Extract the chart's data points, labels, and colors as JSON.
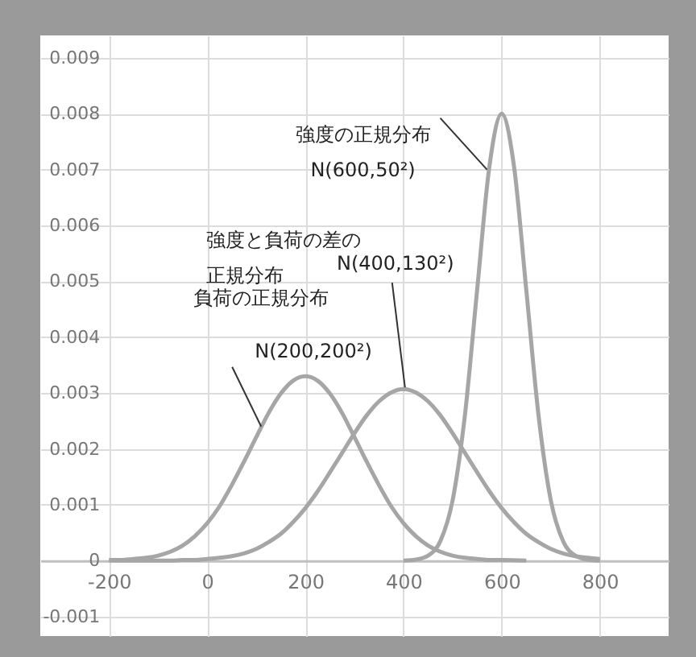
{
  "chart_data": {
    "type": "line",
    "xlim": [
      -340,
      940
    ],
    "ylim": [
      -0.00135,
      0.0094
    ],
    "xticks": [
      -200,
      0,
      200,
      400,
      600,
      800
    ],
    "yticks": [
      -0.001,
      0,
      0.001,
      0.002,
      0.003,
      0.004,
      0.005,
      0.006,
      0.007,
      0.008,
      0.009
    ],
    "grid": true,
    "line_style": "solid",
    "marker": "none",
    "series": [
      {
        "color": "#a6a6a6",
        "x": [
          -200,
          -175,
          -150,
          -125,
          -100,
          -75,
          -50,
          -25,
          0,
          25,
          50,
          75,
          100,
          125,
          150,
          175,
          200,
          225,
          250,
          275,
          300,
          325,
          350,
          375,
          400,
          425,
          450,
          475,
          500,
          525,
          550,
          575,
          600,
          650
        ],
        "values": [
          1e-05,
          1e-05,
          3e-05,
          5e-05,
          9e-05,
          0.00016,
          0.00027,
          0.00044,
          0.00067,
          0.00097,
          0.00135,
          0.00177,
          0.00221,
          0.00264,
          0.00299,
          0.00322,
          0.0033,
          0.00322,
          0.00299,
          0.00264,
          0.00221,
          0.00177,
          0.00135,
          0.00097,
          0.00067,
          0.00044,
          0.00027,
          0.00016,
          9e-05,
          5e-05,
          3e-05,
          1e-05,
          1e-05,
          0
        ]
      },
      {
        "color": "#a6a6a6",
        "x": [
          -200,
          -175,
          -150,
          -125,
          -100,
          -75,
          -50,
          -25,
          0,
          25,
          50,
          75,
          100,
          125,
          150,
          175,
          200,
          225,
          250,
          275,
          300,
          325,
          350,
          375,
          400,
          425,
          450,
          475,
          500,
          525,
          550,
          575,
          600,
          625,
          650,
          675,
          700,
          725,
          750,
          775,
          800
        ],
        "values": [
          0,
          0,
          0,
          0,
          0,
          0,
          1e-05,
          1e-05,
          3e-05,
          5e-05,
          8e-05,
          0.00013,
          0.00021,
          0.00033,
          0.00048,
          0.00069,
          0.00094,
          0.00124,
          0.00158,
          0.00193,
          0.00228,
          0.0026,
          0.00285,
          0.00301,
          0.00307,
          0.00301,
          0.00285,
          0.0026,
          0.00228,
          0.00193,
          0.00158,
          0.00124,
          0.00094,
          0.00069,
          0.00048,
          0.00033,
          0.00021,
          0.00013,
          8e-05,
          5e-05,
          3e-05
        ]
      },
      {
        "color": "#a6a6a6",
        "x": [
          400,
          425,
          450,
          475,
          500,
          525,
          550,
          575,
          600,
          625,
          650,
          675,
          700,
          725,
          750,
          775,
          800
        ],
        "values": [
          0,
          2e-05,
          9e-05,
          0.00035,
          0.00108,
          0.0026,
          0.00485,
          0.00706,
          0.008,
          0.00706,
          0.00485,
          0.0026,
          0.00108,
          0.00035,
          9e-05,
          2e-05,
          0
        ]
      }
    ],
    "annotations": [
      {
        "text": "強度の正規分布\nN(600,50²)",
        "x": 570,
        "y": 0.007
      },
      "強度と負荷の差の正規分布",
      {
        "text": "N(400,130²)",
        "x": 403,
        "y": 0.0031
      },
      "負荷の正規分布",
      {
        "text": "N(200,200²)",
        "x": 110,
        "y": 0.0024
      }
    ]
  }
}
